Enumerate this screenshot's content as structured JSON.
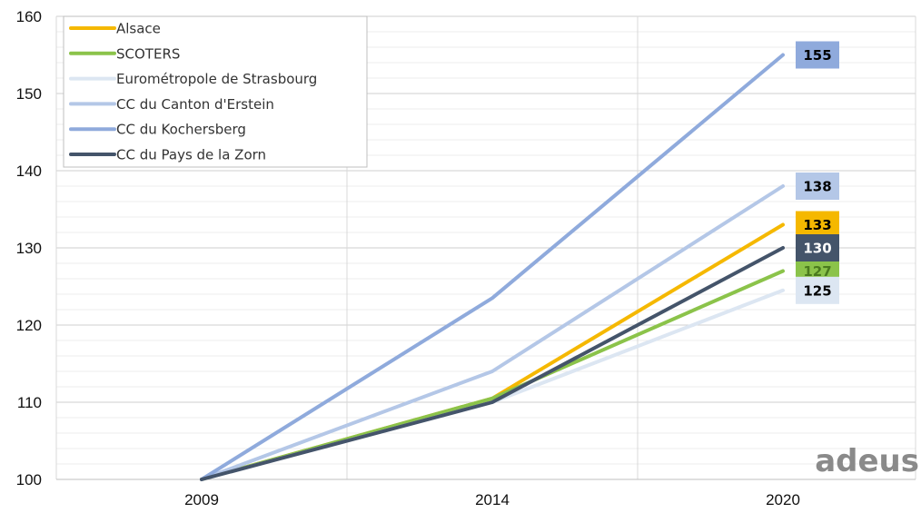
{
  "chart_data": {
    "type": "line",
    "title": "",
    "xlabel": "",
    "ylabel": "",
    "categories": [
      "2009",
      "2014",
      "2020"
    ],
    "ylim": [
      100,
      160
    ],
    "yticks": [
      100,
      110,
      120,
      130,
      140,
      150,
      160
    ],
    "grid": true,
    "legend_position": "top-left",
    "series": [
      {
        "name": "Alsace",
        "color": "#F5B800",
        "values": [
          100,
          110.5,
          133
        ],
        "end_label": "133",
        "label_text_color": "#000000"
      },
      {
        "name": "SCOTERS",
        "color": "#8BC34A",
        "values": [
          100,
          110.5,
          127
        ],
        "end_label": "127",
        "label_text_color": "#4a7a1e"
      },
      {
        "name": "Eurométropole de Strasbourg",
        "color": "#DCE6F2",
        "values": [
          100,
          110,
          124.5
        ],
        "end_label": "125",
        "label_text_color": "#000000"
      },
      {
        "name": "CC du Canton d'Erstein",
        "color": "#B4C7E7",
        "values": [
          100,
          114,
          138
        ],
        "end_label": "138",
        "label_text_color": "#000000"
      },
      {
        "name": "CC du Kochersberg",
        "color": "#8FAADC",
        "values": [
          100,
          123.5,
          155
        ],
        "end_label": "155",
        "label_text_color": "#000000"
      },
      {
        "name": "CC du Pays de la Zorn",
        "color": "#44546A",
        "values": [
          100,
          110,
          130
        ],
        "end_label": "130",
        "label_text_color": "#ffffff"
      }
    ]
  },
  "watermark": "adeus"
}
